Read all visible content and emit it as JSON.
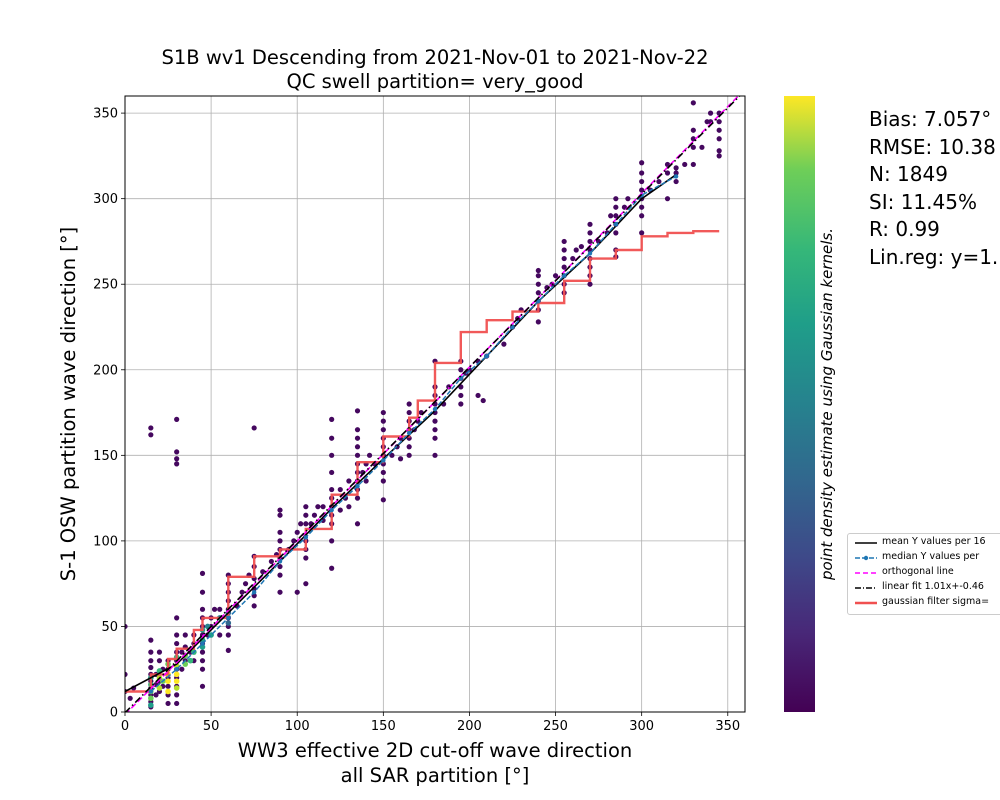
{
  "chart_data": {
    "type": "scatter",
    "title_line1": "S1B wv1 Descending from 2021-Nov-01 to 2021-Nov-22",
    "title_line2": "QC swell partition= very_good",
    "xlabel_line1": "WW3 effective 2D cut-off wave direction",
    "xlabel_line2": "all SAR partition [°]",
    "ylabel": "S-1 OSW partition wave direction [°]",
    "xlim": [
      0,
      360
    ],
    "ylim": [
      0,
      360
    ],
    "x_ticks": [
      0,
      50,
      100,
      150,
      200,
      250,
      300,
      350
    ],
    "y_ticks": [
      0,
      50,
      100,
      150,
      200,
      250,
      300,
      350
    ],
    "grid": true,
    "colorbar_label": "point density estimate using Gaussian kernels.",
    "colormap": "viridis",
    "scatter_points": [
      [
        0,
        50
      ],
      [
        0,
        22
      ],
      [
        0,
        12
      ],
      [
        3,
        8
      ],
      [
        5,
        14
      ],
      [
        15,
        3
      ],
      [
        15,
        6
      ],
      [
        15,
        10
      ],
      [
        15,
        14
      ],
      [
        15,
        18
      ],
      [
        15,
        22
      ],
      [
        15,
        26
      ],
      [
        15,
        30
      ],
      [
        15,
        35
      ],
      [
        15,
        42
      ],
      [
        15,
        162
      ],
      [
        15,
        166
      ],
      [
        18,
        10
      ],
      [
        18,
        16
      ],
      [
        18,
        22
      ],
      [
        20,
        12
      ],
      [
        20,
        18
      ],
      [
        20,
        30
      ],
      [
        20,
        35
      ],
      [
        22,
        15
      ],
      [
        22,
        25
      ],
      [
        25,
        5
      ],
      [
        25,
        10
      ],
      [
        25,
        15
      ],
      [
        25,
        20
      ],
      [
        25,
        25
      ],
      [
        25,
        30
      ],
      [
        30,
        5
      ],
      [
        30,
        10
      ],
      [
        30,
        15
      ],
      [
        30,
        20
      ],
      [
        30,
        25
      ],
      [
        30,
        30
      ],
      [
        30,
        35
      ],
      [
        30,
        40
      ],
      [
        30,
        45
      ],
      [
        30,
        55
      ],
      [
        30,
        145
      ],
      [
        30,
        148
      ],
      [
        30,
        152
      ],
      [
        30,
        171
      ],
      [
        33,
        25
      ],
      [
        33,
        35
      ],
      [
        35,
        30
      ],
      [
        35,
        38
      ],
      [
        35,
        45
      ],
      [
        38,
        35
      ],
      [
        40,
        30
      ],
      [
        40,
        40
      ],
      [
        40,
        45
      ],
      [
        45,
        15
      ],
      [
        45,
        25
      ],
      [
        45,
        30
      ],
      [
        45,
        35
      ],
      [
        45,
        40
      ],
      [
        45,
        45
      ],
      [
        45,
        50
      ],
      [
        45,
        55
      ],
      [
        45,
        60
      ],
      [
        45,
        70
      ],
      [
        45,
        81
      ],
      [
        48,
        45
      ],
      [
        50,
        50
      ],
      [
        50,
        55
      ],
      [
        52,
        60
      ],
      [
        55,
        45
      ],
      [
        55,
        60
      ],
      [
        60,
        36
      ],
      [
        60,
        45
      ],
      [
        60,
        50
      ],
      [
        60,
        55
      ],
      [
        60,
        60
      ],
      [
        60,
        65
      ],
      [
        60,
        70
      ],
      [
        60,
        75
      ],
      [
        60,
        80
      ],
      [
        65,
        62
      ],
      [
        68,
        70
      ],
      [
        70,
        75
      ],
      [
        72,
        80
      ],
      [
        75,
        62
      ],
      [
        75,
        68
      ],
      [
        75,
        72
      ],
      [
        75,
        78
      ],
      [
        75,
        85
      ],
      [
        75,
        91
      ],
      [
        75,
        166
      ],
      [
        80,
        82
      ],
      [
        85,
        88
      ],
      [
        88,
        92
      ],
      [
        90,
        70
      ],
      [
        90,
        80
      ],
      [
        90,
        85
      ],
      [
        90,
        90
      ],
      [
        90,
        95
      ],
      [
        90,
        100
      ],
      [
        90,
        105
      ],
      [
        90,
        115
      ],
      [
        90,
        118
      ],
      [
        95,
        95
      ],
      [
        98,
        100
      ],
      [
        100,
        70
      ],
      [
        100,
        105
      ],
      [
        102,
        110
      ],
      [
        105,
        75
      ],
      [
        105,
        90
      ],
      [
        105,
        95
      ],
      [
        105,
        100
      ],
      [
        105,
        110
      ],
      [
        105,
        115
      ],
      [
        105,
        120
      ],
      [
        108,
        110
      ],
      [
        110,
        115
      ],
      [
        112,
        120
      ],
      [
        115,
        112
      ],
      [
        115,
        120
      ],
      [
        120,
        84
      ],
      [
        120,
        100
      ],
      [
        120,
        110
      ],
      [
        120,
        115
      ],
      [
        120,
        120
      ],
      [
        120,
        125
      ],
      [
        120,
        130
      ],
      [
        120,
        140
      ],
      [
        120,
        150
      ],
      [
        120,
        160
      ],
      [
        120,
        171
      ],
      [
        125,
        118
      ],
      [
        125,
        130
      ],
      [
        128,
        125
      ],
      [
        130,
        120
      ],
      [
        130,
        135
      ],
      [
        135,
        110
      ],
      [
        135,
        125
      ],
      [
        135,
        130
      ],
      [
        135,
        135
      ],
      [
        135,
        140
      ],
      [
        135,
        145
      ],
      [
        135,
        150
      ],
      [
        135,
        155
      ],
      [
        135,
        160
      ],
      [
        135,
        165
      ],
      [
        135,
        176
      ],
      [
        138,
        140
      ],
      [
        140,
        135
      ],
      [
        140,
        145
      ],
      [
        142,
        150
      ],
      [
        145,
        145
      ],
      [
        150,
        124
      ],
      [
        150,
        135
      ],
      [
        150,
        140
      ],
      [
        150,
        145
      ],
      [
        150,
        150
      ],
      [
        150,
        155
      ],
      [
        150,
        160
      ],
      [
        150,
        165
      ],
      [
        150,
        170
      ],
      [
        150,
        175
      ],
      [
        155,
        150
      ],
      [
        158,
        155
      ],
      [
        160,
        148
      ],
      [
        160,
        160
      ],
      [
        165,
        150
      ],
      [
        165,
        155
      ],
      [
        165,
        160
      ],
      [
        165,
        165
      ],
      [
        165,
        170
      ],
      [
        165,
        175
      ],
      [
        165,
        180
      ],
      [
        168,
        165
      ],
      [
        170,
        170
      ],
      [
        172,
        175
      ],
      [
        180,
        150
      ],
      [
        180,
        160
      ],
      [
        180,
        165
      ],
      [
        180,
        170
      ],
      [
        180,
        175
      ],
      [
        180,
        180
      ],
      [
        180,
        185
      ],
      [
        180,
        190
      ],
      [
        180,
        205
      ],
      [
        185,
        180
      ],
      [
        188,
        190
      ],
      [
        195,
        180
      ],
      [
        195,
        185
      ],
      [
        195,
        190
      ],
      [
        195,
        195
      ],
      [
        195,
        200
      ],
      [
        195,
        205
      ],
      [
        198,
        198
      ],
      [
        200,
        200
      ],
      [
        205,
        205
      ],
      [
        205,
        185
      ],
      [
        208,
        182
      ],
      [
        210,
        208
      ],
      [
        220,
        215
      ],
      [
        225,
        225
      ],
      [
        228,
        230
      ],
      [
        230,
        235
      ],
      [
        240,
        228
      ],
      [
        240,
        235
      ],
      [
        240,
        240
      ],
      [
        240,
        245
      ],
      [
        240,
        250
      ],
      [
        240,
        255
      ],
      [
        240,
        258
      ],
      [
        245,
        248
      ],
      [
        248,
        250
      ],
      [
        250,
        255
      ],
      [
        255,
        245
      ],
      [
        255,
        250
      ],
      [
        255,
        255
      ],
      [
        255,
        260
      ],
      [
        255,
        265
      ],
      [
        255,
        270
      ],
      [
        255,
        275
      ],
      [
        260,
        265
      ],
      [
        262,
        270
      ],
      [
        265,
        272
      ],
      [
        270,
        250
      ],
      [
        270,
        255
      ],
      [
        270,
        260
      ],
      [
        270,
        265
      ],
      [
        270,
        270
      ],
      [
        270,
        275
      ],
      [
        270,
        280
      ],
      [
        270,
        285
      ],
      [
        275,
        275
      ],
      [
        280,
        280
      ],
      [
        282,
        290
      ],
      [
        285,
        266
      ],
      [
        285,
        270
      ],
      [
        285,
        280
      ],
      [
        285,
        285
      ],
      [
        285,
        290
      ],
      [
        285,
        295
      ],
      [
        285,
        300
      ],
      [
        290,
        295
      ],
      [
        292,
        300
      ],
      [
        300,
        280
      ],
      [
        300,
        290
      ],
      [
        300,
        295
      ],
      [
        300,
        300
      ],
      [
        300,
        305
      ],
      [
        300,
        310
      ],
      [
        300,
        315
      ],
      [
        300,
        321
      ],
      [
        305,
        305
      ],
      [
        310,
        310
      ],
      [
        315,
        300
      ],
      [
        315,
        315
      ],
      [
        315,
        320
      ],
      [
        320,
        310
      ],
      [
        320,
        315
      ],
      [
        320,
        318
      ],
      [
        325,
        320
      ],
      [
        330,
        320
      ],
      [
        330,
        330
      ],
      [
        330,
        335
      ],
      [
        330,
        340
      ],
      [
        330,
        356
      ],
      [
        335,
        330
      ],
      [
        338,
        345
      ],
      [
        340,
        345
      ],
      [
        340,
        350
      ],
      [
        345,
        325
      ],
      [
        345,
        328
      ],
      [
        345,
        335
      ],
      [
        345,
        340
      ],
      [
        345,
        345
      ],
      [
        345,
        350
      ]
    ],
    "dense_points": [
      [
        15,
        8,
        0.75
      ],
      [
        15,
        12,
        0.8
      ],
      [
        15,
        16,
        0.65
      ],
      [
        15,
        20,
        0.55
      ],
      [
        15,
        4,
        0.6
      ],
      [
        20,
        14,
        0.9
      ],
      [
        20,
        20,
        0.85
      ],
      [
        20,
        24,
        0.7
      ],
      [
        22,
        18,
        0.8
      ],
      [
        25,
        12,
        0.95
      ],
      [
        25,
        18,
        1.0
      ],
      [
        25,
        22,
        0.95
      ],
      [
        25,
        28,
        0.8
      ],
      [
        30,
        14,
        0.9
      ],
      [
        30,
        18,
        1.0
      ],
      [
        30,
        22,
        0.95
      ],
      [
        30,
        27,
        0.85
      ],
      [
        30,
        32,
        0.7
      ],
      [
        35,
        28,
        0.8
      ],
      [
        35,
        33,
        0.75
      ],
      [
        38,
        30,
        0.7
      ],
      [
        40,
        35,
        0.65
      ],
      [
        45,
        38,
        0.6
      ],
      [
        45,
        42,
        0.55
      ],
      [
        45,
        48,
        0.5
      ],
      [
        48,
        50,
        0.45
      ],
      [
        50,
        45,
        0.5
      ],
      [
        55,
        55,
        0.4
      ],
      [
        60,
        52,
        0.35
      ],
      [
        60,
        58,
        0.35
      ]
    ],
    "mean_line": [
      [
        0,
        12
      ],
      [
        30,
        28
      ],
      [
        60,
        58
      ],
      [
        90,
        88
      ],
      [
        120,
        119
      ],
      [
        150,
        148
      ],
      [
        180,
        176
      ],
      [
        210,
        208
      ],
      [
        240,
        240
      ],
      [
        270,
        268
      ],
      [
        300,
        300
      ],
      [
        320,
        314
      ]
    ],
    "median_line": [
      [
        15,
        12
      ],
      [
        30,
        25
      ],
      [
        45,
        40
      ],
      [
        60,
        55
      ],
      [
        75,
        70
      ],
      [
        90,
        88
      ],
      [
        105,
        102
      ],
      [
        120,
        118
      ],
      [
        135,
        132
      ],
      [
        150,
        147
      ],
      [
        165,
        163
      ],
      [
        180,
        177
      ],
      [
        195,
        195
      ],
      [
        210,
        208
      ],
      [
        225,
        225
      ],
      [
        240,
        240
      ],
      [
        255,
        255
      ],
      [
        270,
        268
      ],
      [
        285,
        285
      ],
      [
        300,
        302
      ],
      [
        320,
        313
      ]
    ],
    "orthogonal_line": [
      [
        0,
        -1.5
      ],
      [
        360,
        364
      ]
    ],
    "linear_fit": [
      [
        0,
        -0.46
      ],
      [
        360,
        363.14
      ]
    ],
    "gaussian_filter_steps": [
      [
        0,
        12
      ],
      [
        15,
        12
      ],
      [
        15,
        22
      ],
      [
        25,
        22
      ],
      [
        25,
        31
      ],
      [
        30,
        31
      ],
      [
        30,
        37
      ],
      [
        40,
        37
      ],
      [
        40,
        48
      ],
      [
        45,
        48
      ],
      [
        45,
        55
      ],
      [
        60,
        55
      ],
      [
        60,
        79
      ],
      [
        75,
        79
      ],
      [
        75,
        91
      ],
      [
        90,
        91
      ],
      [
        90,
        95
      ],
      [
        105,
        95
      ],
      [
        105,
        107
      ],
      [
        120,
        107
      ],
      [
        120,
        127
      ],
      [
        135,
        127
      ],
      [
        135,
        146
      ],
      [
        150,
        146
      ],
      [
        150,
        161
      ],
      [
        165,
        161
      ],
      [
        165,
        172
      ],
      [
        170,
        172
      ],
      [
        170,
        182
      ],
      [
        180,
        182
      ],
      [
        180,
        204
      ],
      [
        195,
        204
      ],
      [
        195,
        222
      ],
      [
        210,
        222
      ],
      [
        210,
        229
      ],
      [
        225,
        229
      ],
      [
        225,
        234
      ],
      [
        240,
        234
      ],
      [
        240,
        239
      ],
      [
        255,
        239
      ],
      [
        255,
        252
      ],
      [
        270,
        252
      ],
      [
        270,
        265
      ],
      [
        285,
        265
      ],
      [
        285,
        270
      ],
      [
        300,
        270
      ],
      [
        300,
        278
      ],
      [
        315,
        278
      ],
      [
        315,
        280
      ],
      [
        330,
        280
      ],
      [
        330,
        281
      ],
      [
        345,
        281
      ]
    ],
    "legend": [
      {
        "label": "mean Y values per 16",
        "color": "#000000",
        "style": "solid"
      },
      {
        "label": "median Y values per",
        "color": "#1f77b4",
        "style": "dashed-dot"
      },
      {
        "label": "orthogonal line",
        "color": "#ff00ff",
        "style": "dashed"
      },
      {
        "label": "linear fit 1.01x+-0.46",
        "color": "#000000",
        "style": "dashdot"
      },
      {
        "label": "gaussian filter sigma=",
        "color": "#f05050",
        "style": "solid-thick"
      }
    ]
  },
  "stats": {
    "bias": "Bias: 7.057°",
    "rmse": "RMSE: 10.38",
    "n": "N: 1849",
    "si": "SI: 11.45%",
    "r": "R: 0.99",
    "linreg": "Lin.reg: y=1."
  },
  "colors": {
    "mean": "#000000",
    "median": "#1f77b4",
    "orthogonal": "#ff00ff",
    "gaussian": "#f05050",
    "grid": "#b0b0b0"
  }
}
